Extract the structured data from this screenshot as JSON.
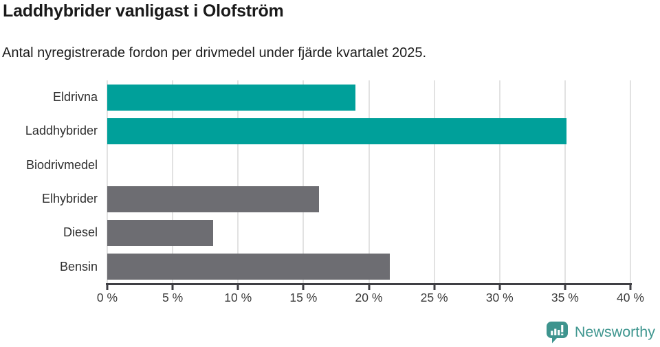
{
  "header": {
    "title": "Laddhybrider vanligast i Olofström",
    "subtitle": "Antal nyregistrerade fordon per drivmedel under fjärde kvartalet 2025."
  },
  "chart_data": {
    "type": "bar",
    "orientation": "horizontal",
    "title": "Laddhybrider vanligast i Olofström",
    "subtitle": "Antal nyregistrerade fordon per drivmedel under fjärde kvartalet 2025.",
    "categories": [
      "Eldrivna",
      "Laddhybrider",
      "Biodrivmedel",
      "Elhybrider",
      "Diesel",
      "Bensin"
    ],
    "values": [
      19,
      35.1,
      0,
      16.2,
      8.1,
      21.6
    ],
    "bar_colors": [
      "#00a09a",
      "#00a09a",
      "#00a09a",
      "#6d6d72",
      "#6d6d72",
      "#6d6d72"
    ],
    "xlabel": "",
    "ylabel": "",
    "xlim": [
      0,
      40
    ],
    "xticks": [
      0,
      5,
      10,
      15,
      20,
      25,
      30,
      35,
      40
    ],
    "xtick_suffix": " %",
    "grid": true,
    "legend": false
  },
  "footer": {
    "brand": "Newsworthy"
  },
  "colors": {
    "teal": "#00a09a",
    "gray": "#6d6d72",
    "gridline": "#e2e2e2",
    "axis": "#3f3f44",
    "logo_teal": "#3e948e",
    "brand_text": "#3f968f"
  }
}
